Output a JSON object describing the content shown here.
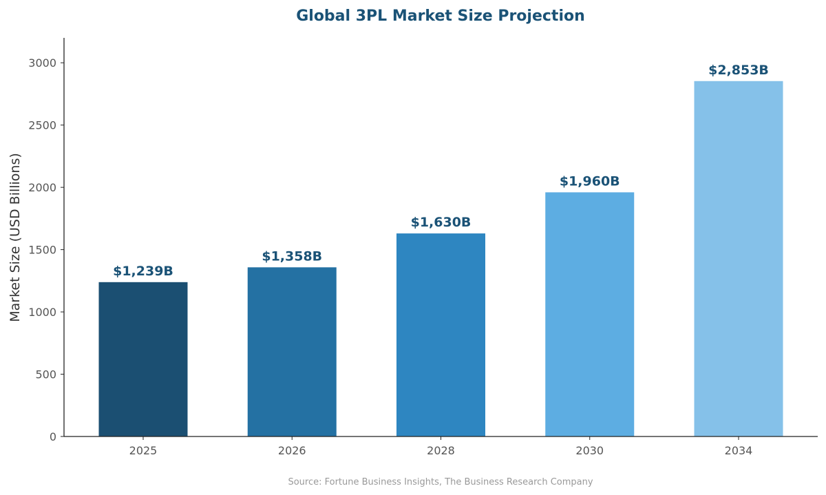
{
  "chart_data": {
    "type": "bar",
    "title": "Global 3PL Market Size Projection",
    "xlabel": "",
    "ylabel": "Market Size (USD Billions)",
    "categories": [
      "2025",
      "2026",
      "2028",
      "2030",
      "2034"
    ],
    "values": [
      1239,
      1358,
      1630,
      1960,
      2853
    ],
    "data_labels": [
      "$1,239B",
      "$1,358B",
      "$1,630B",
      "$1,960B",
      "$2,853B"
    ],
    "colors": [
      "#1b4f72",
      "#2471a3",
      "#2e86c1",
      "#5dade2",
      "#85c1e9"
    ],
    "ylim": [
      0,
      3200
    ],
    "yticks": [
      0,
      500,
      1000,
      1500,
      2000,
      2500,
      3000
    ],
    "grid": false,
    "source": "Source: Fortune Business Insights, The Business Research Company"
  }
}
